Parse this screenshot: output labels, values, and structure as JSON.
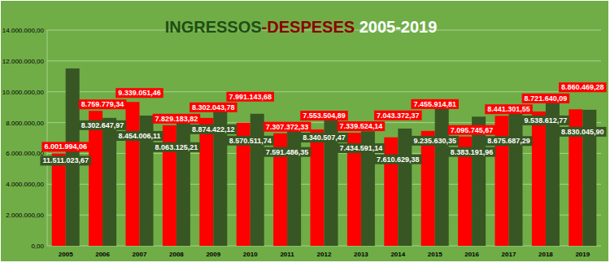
{
  "chart_data": {
    "type": "bar",
    "title": "INGRESSOS-DESPESES 2005-2019",
    "categories": [
      "2005",
      "2006",
      "2007",
      "2008",
      "2009",
      "2010",
      "2011",
      "2012",
      "2013",
      "2014",
      "2015",
      "2016",
      "2017",
      "2018",
      "2019"
    ],
    "series": [
      {
        "color": "#ff0000",
        "values": [
          6001994.06,
          8759779.34,
          9339051.46,
          7829183.82,
          8302043.78,
          7991143.68,
          7307372.33,
          7553504.89,
          7339524.14,
          7043372.37,
          7455914.81,
          7095745.67,
          8441301.55,
          8721640.09,
          8860469.28
        ],
        "value_labels": [
          "6.001.994,06",
          "8.759.779,34",
          "9.339.051,46",
          "7.829.183,82",
          "8.302.043,78",
          "7.991.143,68",
          "7.307.372,33",
          "7.553.504,89",
          "7.339.524,14",
          "7.043.372,37",
          "7.455.914,81",
          "7.095.745,67",
          "8.441.301,55",
          "8.721.640,09",
          "8.860.469,28"
        ]
      },
      {
        "color": "#375623",
        "values": [
          11511023.67,
          8302647.97,
          8454006.11,
          8063125.21,
          8874422.12,
          8570511.74,
          7591486.35,
          8340507.47,
          7434591.14,
          7610629.38,
          9235630.35,
          8383191.96,
          8675687.29,
          9538612.77,
          8830045.9
        ],
        "value_labels": [
          "11.511.023,67",
          "8.302.647,97",
          "8.454.006,11",
          "8.063.125,21",
          "8.874.422,12",
          "8.570.511,74",
          "7.591.486,35",
          "8.340.507,47",
          "7.434.591,14",
          "7.610.629,38",
          "9.235.630,35",
          "8.383.191,96",
          "8.675.687,29",
          "9.538.612,77",
          "8.830.045,90"
        ]
      }
    ],
    "ylim": [
      0,
      14000000
    ],
    "yticks": [
      {
        "value": 0,
        "label": "0,00"
      },
      {
        "value": 2000000,
        "label": "2.000.000,00"
      },
      {
        "value": 4000000,
        "label": "4.000.000,00"
      },
      {
        "value": 6000000,
        "label": "6.000.000,00"
      },
      {
        "value": 8000000,
        "label": "8.000.000,00"
      },
      {
        "value": 10000000,
        "label": "10.000.000,00"
      },
      {
        "value": 12000000,
        "label": "12.000.000,00"
      },
      {
        "value": 14000000,
        "label": "14.000.000,00"
      }
    ],
    "grid": true,
    "data_labels": true
  }
}
